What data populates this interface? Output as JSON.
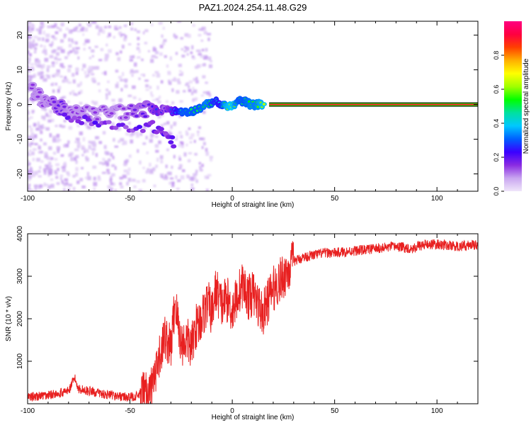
{
  "title": "PAZ1.2024.254.11.48.G29",
  "chart_data": [
    {
      "type": "heatmap",
      "title": "PAZ1.2024.254.11.48.G29",
      "xlabel": "Height of straight line (km)",
      "ylabel": "Frequency (Hz)",
      "xlim": [
        -100,
        120
      ],
      "ylim": [
        -25,
        24
      ],
      "xticks": [
        -100,
        -50,
        0,
        50,
        100
      ],
      "yticks": [
        -20,
        -10,
        0,
        10,
        20
      ],
      "colorbar": {
        "label": "Normalized spectral amplitude",
        "range": [
          0,
          1
        ],
        "ticks": [
          0.0,
          0.2,
          0.4,
          0.6,
          0.8
        ],
        "tick_labels": [
          "0.0",
          "0.2",
          "0.4",
          "0.6",
          "0.8"
        ],
        "colors": [
          "#f0e6fa",
          "#c9a6f0",
          "#8a2be2",
          "#3a00ff",
          "#0060ff",
          "#00c8ff",
          "#00e0a0",
          "#00ff00",
          "#a0ff00",
          "#ffff00",
          "#ffb000",
          "#ff4000",
          "#ff0040",
          "#ff0080"
        ]
      },
      "series": [
        {
          "description_points": [
            {
              "x": -98,
              "y": 4,
              "v": 0.15
            },
            {
              "x": -94,
              "y": 2,
              "v": 0.15
            },
            {
              "x": -90,
              "y": 1,
              "v": 0.15
            },
            {
              "x": -84,
              "y": -1,
              "v": 0.2
            },
            {
              "x": -80,
              "y": -3,
              "v": 0.15
            },
            {
              "x": -74,
              "y": -2,
              "v": 0.15
            },
            {
              "x": -68,
              "y": -3,
              "v": 0.15
            },
            {
              "x": -60,
              "y": -2,
              "v": 0.15
            },
            {
              "x": -52,
              "y": -2,
              "v": 0.15
            },
            {
              "x": -45,
              "y": -2,
              "v": 0.2
            },
            {
              "x": -40,
              "y": -1,
              "v": 0.2
            },
            {
              "x": -36,
              "y": -2,
              "v": 0.3
            },
            {
              "x": -33,
              "y": -1,
              "v": 0.2
            },
            {
              "x": -28,
              "y": -2,
              "v": 0.35
            },
            {
              "x": -24,
              "y": -2,
              "v": 0.5
            },
            {
              "x": -20,
              "y": -2,
              "v": 0.5
            },
            {
              "x": -16,
              "y": -1,
              "v": 0.5
            },
            {
              "x": -12,
              "y": 0,
              "v": 0.55
            },
            {
              "x": -9,
              "y": 1,
              "v": 0.45
            },
            {
              "x": -6,
              "y": 0,
              "v": 0.4
            },
            {
              "x": -3,
              "y": -0.5,
              "v": 0.6
            },
            {
              "x": 0,
              "y": -0.5,
              "v": 0.65
            },
            {
              "x": 3,
              "y": 1,
              "v": 0.5
            },
            {
              "x": 6,
              "y": 1,
              "v": 0.5
            },
            {
              "x": 9,
              "y": 0,
              "v": 0.55
            },
            {
              "x": 12,
              "y": 0,
              "v": 0.55
            },
            {
              "x": 16,
              "y": 0,
              "v": 0.65
            }
          ],
          "secondary_branch": [
            {
              "x": -82,
              "y": -3
            },
            {
              "x": -72,
              "y": -5
            },
            {
              "x": -62,
              "y": -6
            },
            {
              "x": -52,
              "y": -7
            },
            {
              "x": -42,
              "y": -6
            },
            {
              "x": -36,
              "y": -7
            },
            {
              "x": -32,
              "y": -9
            },
            {
              "x": -28,
              "y": -11
            }
          ],
          "constant_line": {
            "x_start": 18,
            "x_end": 120,
            "y": 0,
            "v": 0.9
          }
        }
      ]
    },
    {
      "type": "line",
      "xlabel": "Height of straight line (km)",
      "ylabel": "SNR (10 * v/v)",
      "xlim": [
        -100,
        120
      ],
      "ylim": [
        0,
        4000
      ],
      "xticks": [
        -100,
        -50,
        0,
        50,
        100
      ],
      "yticks": [
        1000,
        2000,
        3000,
        4000
      ],
      "color": "#e82020",
      "x": [
        -100,
        -90,
        -80,
        -77,
        -75,
        -70,
        -60,
        -50,
        -45,
        -40,
        -37,
        -35,
        -33,
        -30,
        -28,
        -25,
        -22,
        -20,
        -18,
        -15,
        -12,
        -10,
        -8,
        -5,
        -3,
        0,
        3,
        5,
        8,
        10,
        12,
        15,
        18,
        20,
        25,
        28,
        30,
        35,
        40,
        45,
        50,
        60,
        70,
        80,
        88,
        90,
        95,
        100,
        110,
        120
      ],
      "y": [
        150,
        200,
        300,
        600,
        350,
        300,
        200,
        150,
        200,
        300,
        700,
        1200,
        1600,
        1300,
        2400,
        1400,
        1500,
        1300,
        1800,
        2000,
        2400,
        2100,
        2700,
        2300,
        2500,
        2200,
        2600,
        2800,
        2500,
        2600,
        2400,
        2100,
        2500,
        2700,
        3000,
        3200,
        3350,
        3450,
        3500,
        3550,
        3550,
        3600,
        3650,
        3700,
        3650,
        3700,
        3750,
        3750,
        3700,
        3750
      ]
    }
  ]
}
